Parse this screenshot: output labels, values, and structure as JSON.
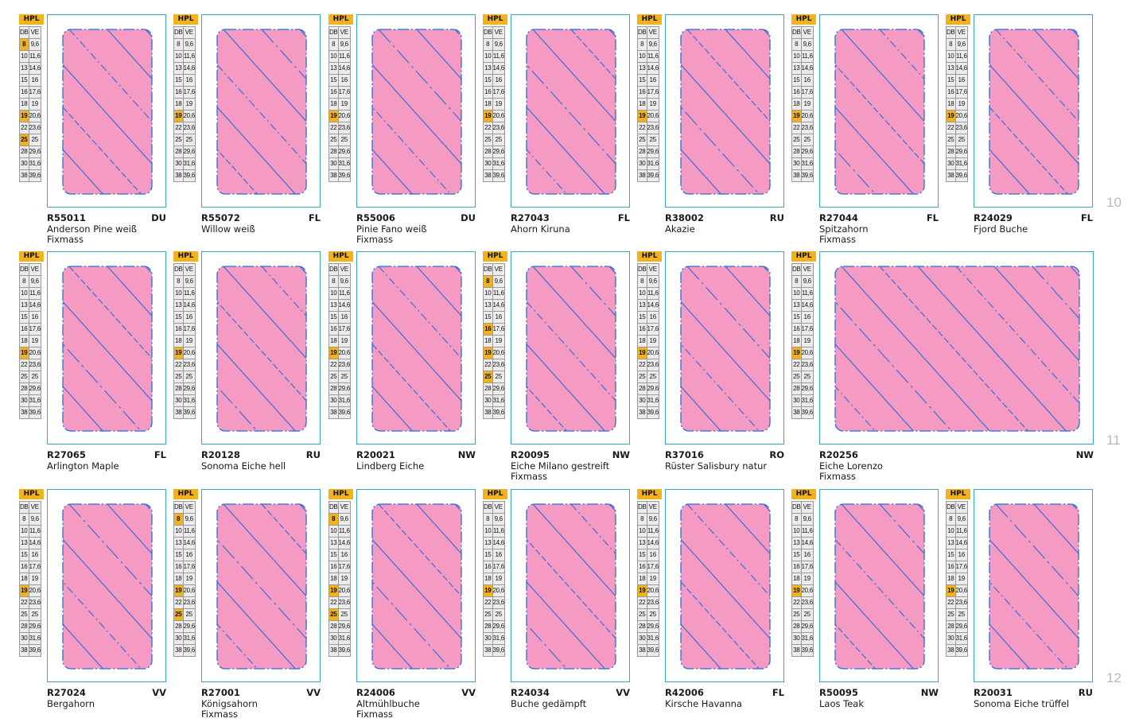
{
  "grid_header": {
    "hpl": "HPL",
    "db": "DB",
    "ve": "VE"
  },
  "grid_rows": [
    [
      "8",
      "9,6"
    ],
    [
      "10",
      "11,6"
    ],
    [
      "13",
      "14,6"
    ],
    [
      "15",
      "16"
    ],
    [
      "16",
      "17,6"
    ],
    [
      "18",
      "19"
    ],
    [
      "19",
      "20,6"
    ],
    [
      "22",
      "23,6"
    ],
    [
      "25",
      "25"
    ],
    [
      "28",
      "29,6"
    ],
    [
      "30",
      "31,6"
    ],
    [
      "38",
      "39,6"
    ]
  ],
  "colors": {
    "highlight": "#f2b21b",
    "panel_fill": "#f59ac3",
    "stripe": "#2b6bd6",
    "frame": "#36a8bf"
  },
  "rows": [
    {
      "page": "10",
      "items": [
        {
          "code": "R55011",
          "tag": "DU",
          "name": "Anderson Pine weiß",
          "note": "Fixmass",
          "hl": [
            "8",
            "19",
            "25"
          ]
        },
        {
          "code": "R55072",
          "tag": "FL",
          "name": "Willow weiß",
          "note": "",
          "hl": [
            "19"
          ]
        },
        {
          "code": "R55006",
          "tag": "DU",
          "name": "Pinie Fano weiß",
          "note": "Fixmass",
          "hl": [
            "19"
          ]
        },
        {
          "code": "R27043",
          "tag": "FL",
          "name": "Ahorn Kiruna",
          "note": "",
          "hl": [
            "19"
          ]
        },
        {
          "code": "R38002",
          "tag": "RU",
          "name": "Akazie",
          "note": "",
          "hl": [
            "19"
          ]
        },
        {
          "code": "R27044",
          "tag": "FL",
          "name": "Spitzahorn",
          "note": "Fixmass",
          "hl": [
            "19"
          ]
        },
        {
          "code": "R24029",
          "tag": "FL",
          "name": "Fjord Buche",
          "note": "",
          "hl": [
            "19"
          ]
        }
      ]
    },
    {
      "page": "11",
      "items": [
        {
          "code": "R27065",
          "tag": "FL",
          "name": "Arlington Maple",
          "note": "",
          "hl": [
            "19"
          ]
        },
        {
          "code": "R20128",
          "tag": "RU",
          "name": "Sonoma Eiche hell",
          "note": "",
          "hl": [
            "19"
          ]
        },
        {
          "code": "R20021",
          "tag": "NW",
          "name": "Lindberg Eiche",
          "note": "",
          "hl": [
            "19"
          ]
        },
        {
          "code": "R20095",
          "tag": "NW",
          "name": "Eiche Milano gestreift",
          "note": "Fixmass",
          "hl": [
            "8",
            "16",
            "19",
            "25"
          ]
        },
        {
          "code": "R37016",
          "tag": "RO",
          "name": "Rüster Salisbury natur",
          "note": "",
          "hl": [
            "19"
          ]
        },
        {
          "code": "R20256",
          "tag": "NW",
          "name": "Eiche Lorenzo",
          "note": "Fixmass",
          "hl": [
            "19"
          ],
          "wide": true
        }
      ]
    },
    {
      "page": "12",
      "items": [
        {
          "code": "R27024",
          "tag": "VV",
          "name": "Bergahorn",
          "note": "",
          "hl": [
            "19"
          ]
        },
        {
          "code": "R27001",
          "tag": "VV",
          "name": "Königsahorn",
          "note": "Fixmass",
          "hl": [
            "8",
            "19",
            "25"
          ]
        },
        {
          "code": "R24006",
          "tag": "VV",
          "name": "Altmühlbuche",
          "note": "Fixmass",
          "hl": [
            "8",
            "19",
            "25"
          ]
        },
        {
          "code": "R24034",
          "tag": "VV",
          "name": "Buche gedämpft",
          "note": "",
          "hl": [
            "19"
          ]
        },
        {
          "code": "R42006",
          "tag": "FL",
          "name": "Kirsche Havanna",
          "note": "",
          "hl": [
            "19"
          ]
        },
        {
          "code": "R50095",
          "tag": "NW",
          "name": "Laos Teak",
          "note": "",
          "hl": [
            "19"
          ]
        },
        {
          "code": "R20031",
          "tag": "RU",
          "name": "Sonoma Eiche trüffel",
          "note": "",
          "hl": [
            "19"
          ]
        }
      ]
    }
  ]
}
